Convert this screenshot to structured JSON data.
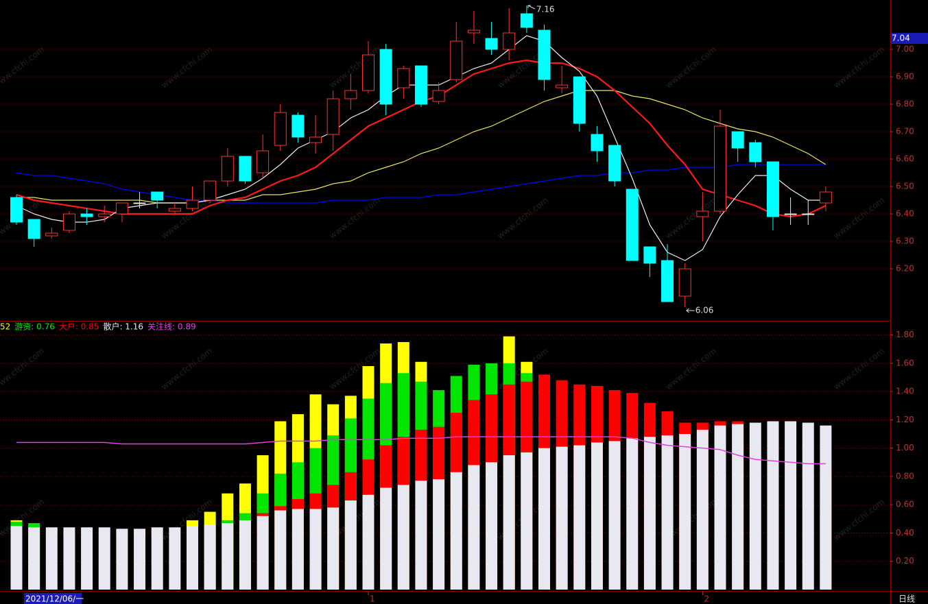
{
  "watermark": "www.cfchi.com",
  "cursor_date": "2021/12/06/一",
  "period": "日线",
  "chart_data": [
    {
      "type": "candlestick",
      "up_color": "#ff3232",
      "down_color": "#00ffff",
      "flat_color": "#e8e8e8",
      "grid": true,
      "categories": [
        null,
        null,
        null,
        null,
        null,
        null,
        null,
        null,
        null,
        null,
        null,
        null,
        null,
        null,
        null,
        null,
        null,
        null,
        null,
        null,
        "1",
        null,
        null,
        null,
        null,
        null,
        null,
        null,
        null,
        null,
        null,
        null,
        null,
        null,
        null,
        null,
        null,
        null,
        null,
        "2",
        null,
        null,
        null,
        null,
        null,
        null,
        null
      ],
      "open": [
        6.46,
        6.38,
        6.32,
        6.34,
        6.4,
        6.39,
        6.4,
        6.44,
        6.48,
        6.41,
        6.42,
        6.45,
        6.52,
        6.61,
        6.55,
        6.65,
        6.76,
        6.66,
        6.69,
        6.82,
        6.85,
        7.0,
        6.86,
        6.94,
        6.81,
        6.89,
        7.06,
        7.04,
        7.0,
        7.13,
        7.07,
        6.86,
        6.9,
        6.69,
        6.65,
        6.49,
        6.28,
        6.23,
        6.1,
        6.39,
        6.41,
        6.7,
        6.66,
        6.59,
        6.4,
        6.4,
        6.44
      ],
      "high": [
        6.47,
        6.38,
        6.35,
        6.41,
        6.42,
        6.43,
        6.44,
        6.48,
        6.48,
        6.44,
        6.5,
        6.52,
        6.64,
        6.61,
        6.69,
        6.8,
        6.77,
        6.76,
        6.85,
        6.91,
        7.03,
        7.02,
        6.94,
        6.94,
        6.88,
        7.1,
        7.14,
        7.1,
        7.15,
        7.16,
        7.09,
        6.94,
        6.9,
        6.72,
        6.65,
        6.49,
        6.28,
        6.29,
        6.22,
        6.48,
        6.78,
        6.7,
        6.67,
        6.59,
        6.46,
        6.45,
        6.5
      ],
      "low": [
        6.36,
        6.28,
        6.31,
        6.33,
        6.36,
        6.37,
        6.37,
        6.42,
        6.42,
        6.4,
        6.41,
        6.44,
        6.5,
        6.51,
        6.53,
        6.63,
        6.66,
        6.62,
        6.63,
        6.78,
        6.84,
        6.76,
        6.82,
        6.79,
        6.8,
        6.88,
        7.02,
        6.98,
        6.96,
        7.06,
        6.85,
        6.84,
        6.7,
        6.59,
        6.5,
        6.23,
        6.17,
        6.08,
        6.06,
        6.3,
        6.4,
        6.59,
        6.57,
        6.34,
        6.36,
        6.36,
        6.41
      ],
      "close": [
        6.37,
        6.31,
        6.33,
        6.4,
        6.39,
        6.4,
        6.44,
        6.44,
        6.45,
        6.42,
        6.45,
        6.52,
        6.61,
        6.52,
        6.63,
        6.77,
        6.68,
        6.68,
        6.82,
        6.85,
        6.98,
        6.8,
        6.93,
        6.8,
        6.85,
        7.03,
        7.07,
        7.0,
        7.06,
        7.08,
        6.89,
        6.87,
        6.73,
        6.63,
        6.52,
        6.23,
        6.22,
        6.08,
        6.2,
        6.41,
        6.72,
        6.64,
        6.59,
        6.39,
        6.4,
        6.4,
        6.48
      ],
      "lines": [
        {
          "color": "#0000ff",
          "values": [
            6.55,
            6.54,
            6.54,
            6.53,
            6.52,
            6.51,
            6.49,
            6.48,
            6.47,
            6.46,
            6.45,
            6.45,
            6.44,
            6.44,
            6.44,
            6.44,
            6.44,
            6.44,
            6.45,
            6.45,
            6.45,
            6.46,
            6.46,
            6.46,
            6.47,
            6.47,
            6.48,
            6.49,
            6.5,
            6.51,
            6.52,
            6.53,
            6.54,
            6.54,
            6.55,
            6.55,
            6.56,
            6.56,
            6.57,
            6.57,
            6.57,
            6.58,
            6.58,
            6.58,
            6.58,
            6.58,
            6.58
          ]
        },
        {
          "color": "#e8e860",
          "values": [
            6.46,
            6.46,
            6.45,
            6.45,
            6.45,
            6.45,
            6.45,
            6.45,
            6.44,
            6.44,
            6.44,
            6.45,
            6.45,
            6.45,
            6.47,
            6.47,
            6.48,
            6.49,
            6.51,
            6.52,
            6.55,
            6.57,
            6.59,
            6.62,
            6.64,
            6.67,
            6.7,
            6.72,
            6.75,
            6.78,
            6.81,
            6.83,
            6.85,
            6.85,
            6.85,
            6.83,
            6.82,
            6.8,
            6.78,
            6.75,
            6.73,
            6.71,
            6.7,
            6.68,
            6.65,
            6.62,
            6.58
          ]
        },
        {
          "color": "#ff1a1a",
          "width": 2.2,
          "values": [
            6.47,
            6.45,
            6.44,
            6.43,
            6.42,
            6.41,
            6.4,
            6.4,
            6.4,
            6.4,
            6.4,
            6.43,
            6.45,
            6.46,
            6.49,
            6.52,
            6.54,
            6.57,
            6.62,
            6.67,
            6.72,
            6.75,
            6.78,
            6.81,
            6.83,
            6.87,
            6.91,
            6.93,
            6.95,
            6.96,
            6.95,
            6.95,
            6.93,
            6.9,
            6.85,
            6.79,
            6.73,
            6.65,
            6.58,
            6.49,
            6.47,
            6.45,
            6.43,
            6.4,
            6.39,
            6.4,
            6.43
          ]
        },
        {
          "color": "#f0f0f0",
          "values": [
            6.43,
            6.4,
            6.38,
            6.37,
            6.37,
            6.38,
            6.42,
            6.43,
            6.44,
            6.44,
            6.44,
            6.45,
            6.47,
            6.49,
            6.53,
            6.58,
            6.64,
            6.67,
            6.7,
            6.75,
            6.78,
            6.83,
            6.87,
            6.87,
            6.87,
            6.9,
            6.93,
            6.95,
            7.0,
            7.05,
            7.03,
            6.97,
            6.92,
            6.83,
            6.68,
            6.53,
            6.36,
            6.26,
            6.23,
            6.27,
            6.39,
            6.47,
            6.54,
            6.54,
            6.49,
            6.45,
            6.45
          ]
        }
      ],
      "ylim": [
        6.01,
        7.18
      ],
      "yticks": [
        {
          "value": 7,
          "label": "7.00"
        },
        {
          "value": 6.9,
          "label": "6.90"
        },
        {
          "value": 6.8,
          "label": "6.80"
        },
        {
          "value": 6.7,
          "label": "6.70"
        },
        {
          "value": 6.6,
          "label": "6.60"
        },
        {
          "value": 6.5,
          "label": "6.50"
        },
        {
          "value": 6.4,
          "label": "6.40"
        },
        {
          "value": 6.3,
          "label": "6.30"
        },
        {
          "value": 6.2,
          "label": "6.20"
        }
      ],
      "cursor_price": 7.04
    },
    {
      "type": "bar",
      "grid": true,
      "legend": [
        "52",
        "游资: 0.76",
        "大户: 0.85",
        "散户: 1.16",
        "关注线: 0.89"
      ],
      "series": [
        {
          "color": "#ffff00",
          "values": [
            0.49,
            null,
            null,
            null,
            null,
            null,
            null,
            null,
            null,
            null,
            0.49,
            0.55,
            0.68,
            0.75,
            0.95,
            1.19,
            1.24,
            1.38,
            1.31,
            1.37,
            1.58,
            1.74,
            1.75,
            1.61,
            null,
            null,
            null,
            null,
            1.79,
            1.61,
            null,
            null,
            null,
            null,
            null,
            null,
            null,
            null,
            null,
            null,
            null,
            null,
            null,
            null,
            null,
            null,
            0.52
          ]
        },
        {
          "color": "#00e600",
          "values": [
            0.48,
            0.47,
            null,
            null,
            null,
            null,
            null,
            null,
            null,
            null,
            null,
            null,
            0.49,
            0.54,
            0.68,
            0.82,
            0.9,
            1.0,
            1.09,
            1.21,
            1.35,
            1.46,
            1.53,
            1.47,
            1.41,
            1.51,
            1.59,
            1.6,
            1.6,
            1.53,
            null,
            null,
            null,
            null,
            null,
            null,
            null,
            null,
            null,
            null,
            null,
            null,
            null,
            null,
            null,
            null,
            0.76
          ]
        },
        {
          "color": "#ff0000",
          "values": [
            null,
            null,
            null,
            null,
            null,
            null,
            null,
            null,
            null,
            null,
            null,
            null,
            null,
            null,
            0.54,
            0.59,
            0.64,
            0.68,
            0.74,
            0.83,
            0.92,
            1.02,
            1.08,
            1.13,
            1.15,
            1.25,
            1.34,
            1.38,
            1.45,
            1.47,
            1.52,
            1.48,
            1.45,
            1.44,
            1.41,
            1.39,
            1.32,
            1.26,
            1.18,
            1.18,
            1.19,
            1.19,
            null,
            null,
            null,
            null,
            0.85
          ]
        },
        {
          "color": "#e8e8f0",
          "values": [
            0.45,
            0.44,
            0.44,
            0.44,
            0.44,
            0.44,
            0.43,
            0.43,
            0.44,
            0.44,
            0.45,
            0.46,
            0.47,
            0.49,
            0.52,
            0.56,
            0.57,
            0.57,
            0.58,
            0.63,
            0.67,
            0.72,
            0.74,
            0.77,
            0.78,
            0.83,
            0.88,
            0.9,
            0.95,
            0.97,
            1.0,
            1.01,
            1.02,
            1.04,
            1.05,
            1.07,
            1.08,
            1.09,
            1.1,
            1.13,
            1.16,
            1.17,
            1.18,
            1.19,
            1.19,
            1.18,
            1.16
          ]
        },
        {
          "color": "#e040e0",
          "kind": "line",
          "values": [
            1.04,
            1.04,
            1.04,
            1.04,
            1.04,
            1.04,
            1.03,
            1.03,
            1.03,
            1.03,
            1.03,
            1.03,
            1.03,
            1.03,
            1.04,
            1.05,
            1.05,
            1.05,
            1.06,
            1.06,
            1.06,
            1.06,
            1.07,
            1.07,
            1.07,
            1.08,
            1.08,
            1.08,
            1.08,
            1.08,
            1.08,
            1.08,
            1.08,
            1.08,
            1.08,
            1.07,
            1.04,
            1.02,
            1.01,
            1.0,
            0.99,
            0.95,
            0.92,
            0.91,
            0.9,
            0.89,
            0.89
          ]
        }
      ],
      "ylim": [
        0,
        1.89
      ],
      "yticks": [
        {
          "value": 1.8,
          "label": "1.80"
        },
        {
          "value": 1.6,
          "label": "1.60"
        },
        {
          "value": 1.4,
          "label": "1.40"
        },
        {
          "value": 1.2,
          "label": "1.20"
        },
        {
          "value": 1,
          "label": "1.00"
        },
        {
          "value": 0.8,
          "label": "0.80"
        },
        {
          "value": 0.6,
          "label": "0.60"
        },
        {
          "value": 0.4,
          "label": "0.40"
        },
        {
          "value": 0.2,
          "label": "0.20"
        }
      ]
    }
  ]
}
